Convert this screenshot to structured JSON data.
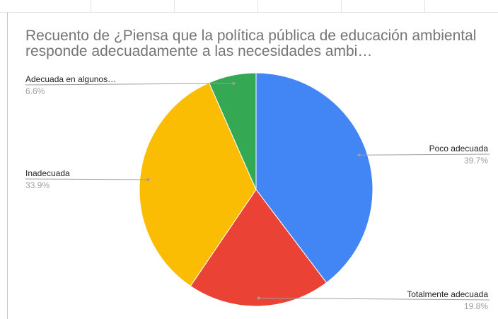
{
  "chart_data": {
    "type": "pie",
    "title": "Recuento de ¿Piensa que la política pública de educación ambiental responde adecuadamente a las necesidades ambi…",
    "slices": [
      {
        "label": "Poco adecuada",
        "value": 39.7,
        "value_label": "39.7%",
        "color": "#4285f4"
      },
      {
        "label": "Totalmente adecuada",
        "value": 19.8,
        "value_label": "19.8%",
        "color": "#ea4335"
      },
      {
        "label": "Inadecuada",
        "value": 33.9,
        "value_label": "33.9%",
        "color": "#fbbc04"
      },
      {
        "label": "Adecuada en algunos…",
        "value": 6.6,
        "value_label": "6.6%",
        "color": "#34a853"
      }
    ],
    "legend": "labels-outside"
  }
}
